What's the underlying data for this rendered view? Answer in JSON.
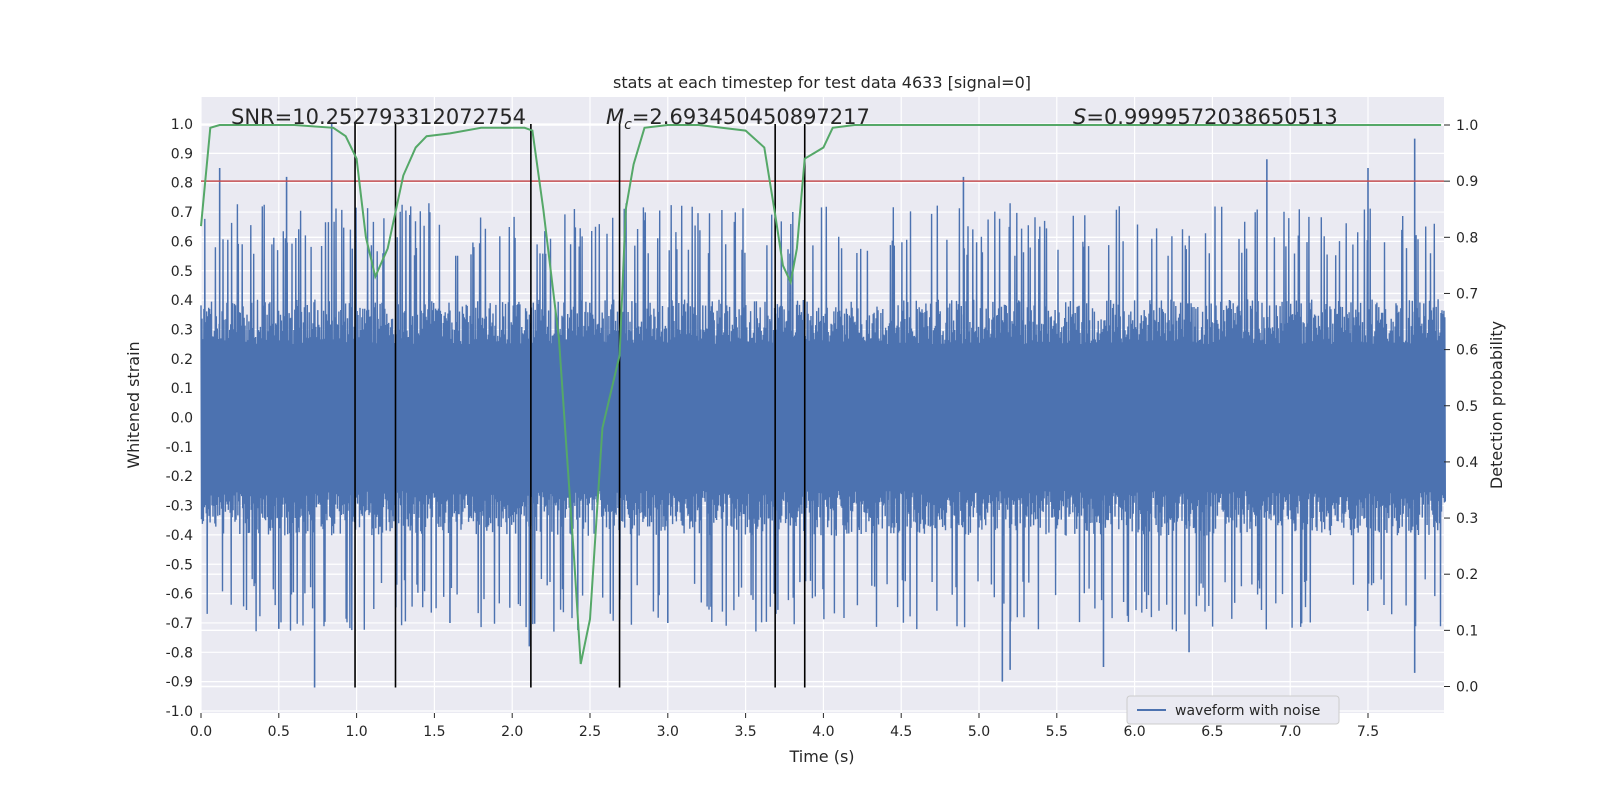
{
  "chart_data": {
    "type": "line",
    "title": "stats at each timestep for test data 4633 [signal=0]",
    "xlabel": "Time (s)",
    "ylabel": "Whitened strain",
    "y2label": "Detection probability",
    "xlim": [
      0,
      8
    ],
    "ylim": [
      -1.05,
      1.1
    ],
    "y2lim": [
      -0.05,
      1.04
    ],
    "xticks": [
      "0.0",
      "0.5",
      "1.0",
      "1.5",
      "2.0",
      "2.5",
      "3.0",
      "3.5",
      "4.0",
      "4.5",
      "5.0",
      "5.5",
      "6.0",
      "6.5",
      "7.0",
      "7.5"
    ],
    "yticks": [
      "1.0",
      "0.9",
      "0.8",
      "0.7",
      "0.6",
      "0.5",
      "0.4",
      "0.3",
      "0.2",
      "0.1",
      "0.0",
      "-0.1",
      "-0.2",
      "-0.3",
      "-0.4",
      "-0.5",
      "-0.6",
      "-0.7",
      "-0.8",
      "-0.9",
      "-1.0"
    ],
    "y2ticks": [
      "1.0",
      "0.9",
      "0.8",
      "0.7",
      "0.6",
      "0.5",
      "0.4",
      "0.3",
      "0.2",
      "0.1",
      "0.0"
    ],
    "grid": true,
    "annotations": {
      "snr": "SNR=10.252793312072754",
      "mc_prefix": "M",
      "mc_sub": "c",
      "mc_value": "=2.693450450897217",
      "s_prefix": "S",
      "s_value": "=0.9999572038650513"
    },
    "threshold": {
      "y2": 0.9,
      "color": "#c44e52"
    },
    "vlines": {
      "x": [
        0.99,
        1.25,
        2.12,
        2.69,
        3.69,
        3.88
      ],
      "ymin": -0.92,
      "ymax": 1.0,
      "color": "#000000"
    },
    "series": [
      {
        "name": "waveform with noise",
        "color": "#4c72b0",
        "kind": "dense-noise",
        "x_range": [
          0,
          8
        ],
        "core_amplitude": 0.25,
        "typical_peak": 0.55,
        "spikes": [
          {
            "x": 0.12,
            "y": 0.85
          },
          {
            "x": 0.55,
            "y": 0.82
          },
          {
            "x": 0.73,
            "y": -0.92
          },
          {
            "x": 0.84,
            "y": 1.0
          },
          {
            "x": 1.6,
            "y": -0.7
          },
          {
            "x": 2.11,
            "y": -0.78
          },
          {
            "x": 4.9,
            "y": 0.82
          },
          {
            "x": 5.15,
            "y": -0.9
          },
          {
            "x": 5.2,
            "y": -0.86
          },
          {
            "x": 5.8,
            "y": -0.85
          },
          {
            "x": 6.85,
            "y": 0.88
          },
          {
            "x": 7.8,
            "y": 0.95
          },
          {
            "x": 7.8,
            "y": -0.87
          },
          {
            "x": 0.5,
            "y": -0.72
          },
          {
            "x": 3.0,
            "y": -0.7
          },
          {
            "x": 6.35,
            "y": -0.8
          },
          {
            "x": 7.5,
            "y": 0.85
          }
        ]
      },
      {
        "name": "",
        "color": "#55a868",
        "axis": "right",
        "x": [
          0.0,
          0.06,
          0.12,
          0.3,
          0.6,
          0.85,
          0.93,
          1.0,
          1.06,
          1.12,
          1.2,
          1.3,
          1.38,
          1.45,
          1.6,
          1.8,
          2.0,
          2.08,
          2.13,
          2.2,
          2.3,
          2.4,
          2.44,
          2.5,
          2.58,
          2.69,
          2.73,
          2.78,
          2.85,
          3.0,
          3.2,
          3.5,
          3.62,
          3.69,
          3.74,
          3.79,
          3.83,
          3.88,
          3.94,
          4.0,
          4.06,
          4.2,
          5.0,
          6.0,
          7.0,
          7.97
        ],
        "y": [
          0.82,
          0.995,
          1.0,
          1.0,
          1.0,
          0.995,
          0.98,
          0.94,
          0.8,
          0.73,
          0.78,
          0.91,
          0.96,
          0.98,
          0.985,
          0.995,
          0.995,
          0.995,
          0.99,
          0.85,
          0.62,
          0.22,
          0.04,
          0.12,
          0.46,
          0.59,
          0.85,
          0.93,
          0.995,
          1.0,
          1.0,
          0.99,
          0.96,
          0.84,
          0.75,
          0.72,
          0.78,
          0.94,
          0.95,
          0.96,
          0.995,
          1.0,
          1.0,
          1.0,
          1.0,
          1.0
        ]
      }
    ],
    "legend": {
      "placement": "lower-right",
      "entries": [
        "waveform with noise"
      ]
    }
  },
  "colors": {
    "plot_bg": "#eaeaf2",
    "grid": "#ffffff"
  }
}
